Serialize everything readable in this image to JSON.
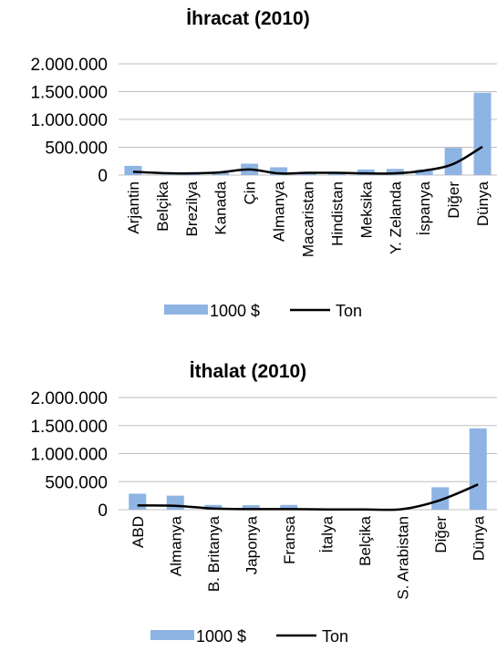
{
  "chart_data": [
    {
      "type": "bar",
      "title": "İhracat (2010)",
      "categories": [
        "Arjantin",
        "Belçika",
        "Brezilya",
        "Kanada",
        "Çin",
        "Almanya",
        "Macaristan",
        "Hindistan",
        "Meksika",
        "Y. Zelanda",
        "İspanya",
        "Diğer",
        "Dünya"
      ],
      "y_ticks": [
        "0",
        "500.000",
        "1.000.000",
        "1.500.000",
        "2.000.000"
      ],
      "ylim": [
        0,
        2000000
      ],
      "legend_position": "bottom",
      "colors": {
        "bar": "#8eb4e3",
        "line": "#000000"
      },
      "series": [
        {
          "name": "1000 $",
          "type": "bar",
          "values": [
            165000,
            10000,
            20000,
            45000,
            205000,
            140000,
            45000,
            40000,
            100000,
            110000,
            100000,
            490000,
            1480000
          ]
        },
        {
          "name": "Ton",
          "type": "line",
          "values": [
            60000,
            35000,
            30000,
            50000,
            100000,
            30000,
            40000,
            40000,
            30000,
            30000,
            80000,
            200000,
            510000
          ]
        }
      ]
    },
    {
      "type": "bar",
      "title": "İthalat (2010)",
      "categories": [
        "ABD",
        "Almanya",
        "B. Britanya",
        "Japonya",
        "Fransa",
        "İtalya",
        "Belçika",
        "S. Arabistan",
        "Diğer",
        "Dünya"
      ],
      "y_ticks": [
        "0",
        "500.000",
        "1.000.000",
        "1.500.000",
        "2.000.000"
      ],
      "ylim": [
        0,
        2000000
      ],
      "legend_position": "bottom",
      "colors": {
        "bar": "#8eb4e3",
        "line": "#000000"
      },
      "series": [
        {
          "name": "1000 $",
          "type": "bar",
          "values": [
            285000,
            250000,
            85000,
            80000,
            85000,
            20000,
            10000,
            10000,
            400000,
            1450000
          ]
        },
        {
          "name": "Ton",
          "type": "line",
          "values": [
            75000,
            70000,
            20000,
            10000,
            10000,
            5000,
            5000,
            10000,
            170000,
            450000
          ]
        }
      ]
    }
  ]
}
